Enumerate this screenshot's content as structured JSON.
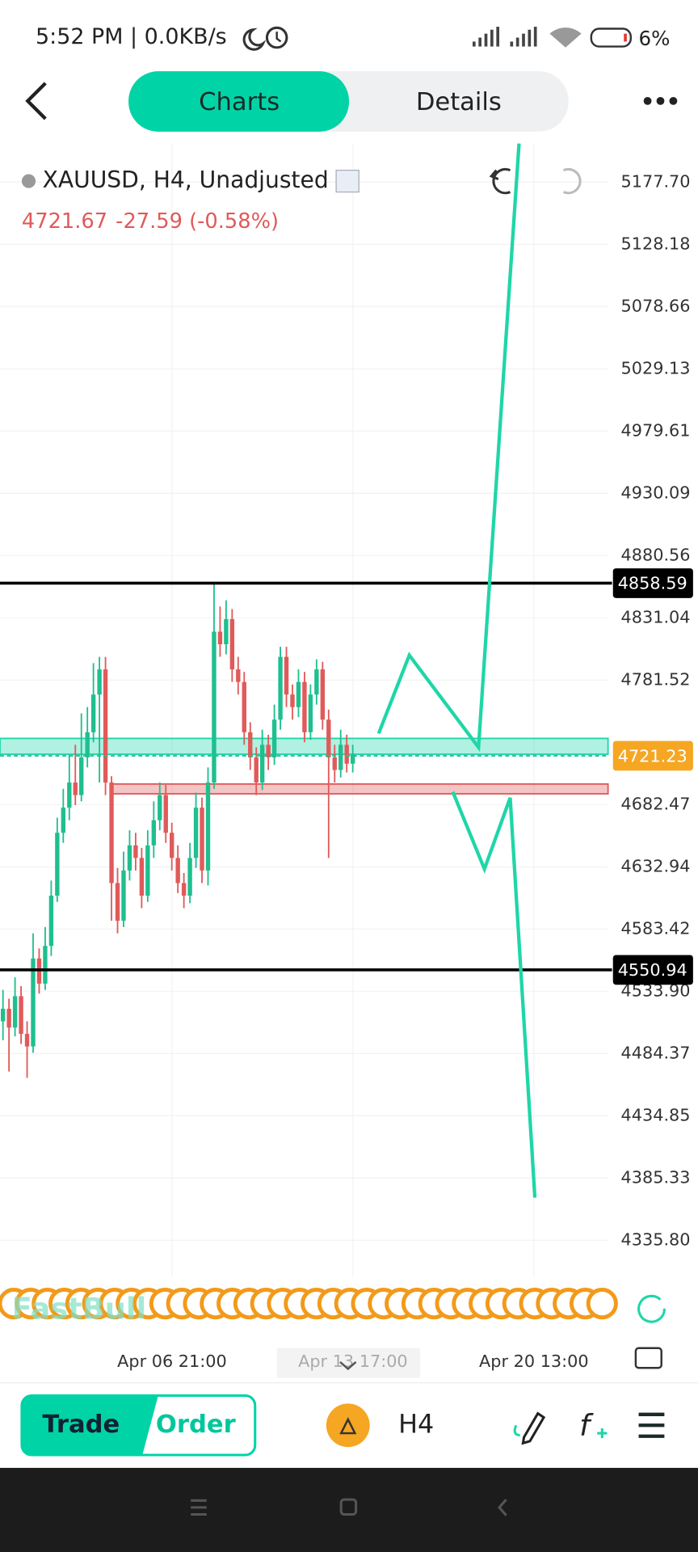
{
  "status_bar": {
    "left": "5:52 PM | 0.0KB/s",
    "battery": "6%"
  },
  "tabs": [
    "Charts",
    "Details"
  ],
  "chart": {
    "symbol": "XAUUSD, H4, Unadjusted",
    "last_price": "4721.67",
    "change": "-27.59 (-0.58%)",
    "ylim": [
      4306.7,
      5208.4
    ],
    "yticks": [
      {
        "value": 5177.7,
        "label": "5177.70"
      },
      5128.18,
      5078.66,
      5029.13,
      4979.61,
      4930.09,
      4880.56,
      4831.04,
      4781.52,
      4682.47,
      4632.94,
      4583.42,
      {
        "value": 4533.9,
        "label": "4533.90"
      },
      4484.37,
      4434.85,
      4385.33,
      {
        "value": 4335.8,
        "label": "4335.80"
      }
    ],
    "levels": [
      4858.59,
      4550.94
    ],
    "current_price": 4721.23,
    "zones": [
      {
        "low": 4722.5,
        "high": 4735.1,
        "color": "#1fd6a8"
      },
      {
        "low": 4691,
        "high": 4698.8,
        "color": "#e05a5a"
      }
    ],
    "xticks": [
      "Apr 06 21:00",
      "Apr 13 17:00",
      "Apr 20 13:00"
    ],
    "up_color": "#1fbf8f",
    "down_color": "#e05a5a",
    "candles": [
      [
        4510,
        4535,
        4495,
        4520
      ],
      [
        4520,
        4528,
        4470,
        4505
      ],
      [
        4505,
        4545,
        4498,
        4530
      ],
      [
        4530,
        4538,
        4492,
        4500
      ],
      [
        4500,
        4510,
        4465,
        4490
      ],
      [
        4490,
        4580,
        4485,
        4560
      ],
      [
        4560,
        4568,
        4532,
        4540
      ],
      [
        4540,
        4585,
        4535,
        4570
      ],
      [
        4570,
        4622,
        4562,
        4610
      ],
      [
        4610,
        4672,
        4605,
        4660
      ],
      [
        4660,
        4695,
        4652,
        4680
      ],
      [
        4680,
        4722,
        4670,
        4700
      ],
      [
        4700,
        4730,
        4682,
        4690
      ],
      [
        4690,
        4755,
        4685,
        4720
      ],
      [
        4720,
        4760,
        4712,
        4740
      ],
      [
        4740,
        4795,
        4732,
        4770
      ],
      [
        4770,
        4800,
        4700,
        4790
      ],
      [
        4790,
        4800,
        4690,
        4700
      ],
      [
        4700,
        4705,
        4590,
        4620
      ],
      [
        4620,
        4632,
        4580,
        4590
      ],
      [
        4590,
        4645,
        4585,
        4630
      ],
      [
        4630,
        4662,
        4622,
        4650
      ],
      [
        4650,
        4660,
        4630,
        4640
      ],
      [
        4640,
        4648,
        4600,
        4610
      ],
      [
        4610,
        4662,
        4605,
        4650
      ],
      [
        4650,
        4685,
        4640,
        4670
      ],
      [
        4670,
        4700,
        4662,
        4690
      ],
      [
        4690,
        4698,
        4652,
        4660
      ],
      [
        4660,
        4668,
        4630,
        4640
      ],
      [
        4640,
        4650,
        4612,
        4620
      ],
      [
        4620,
        4628,
        4600,
        4610
      ],
      [
        4610,
        4652,
        4604,
        4640
      ],
      [
        4640,
        4692,
        4632,
        4680
      ],
      [
        4680,
        4688,
        4620,
        4630
      ],
      [
        4630,
        4712,
        4618,
        4700
      ],
      [
        4700,
        4858,
        4695,
        4820
      ],
      [
        4820,
        4840,
        4800,
        4810
      ],
      [
        4810,
        4845,
        4802,
        4830
      ],
      [
        4830,
        4838,
        4780,
        4790
      ],
      [
        4790,
        4800,
        4770,
        4780
      ],
      [
        4780,
        4788,
        4730,
        4740
      ],
      [
        4740,
        4748,
        4710,
        4720
      ],
      [
        4720,
        4728,
        4690,
        4700
      ],
      [
        4700,
        4742,
        4694,
        4730
      ],
      [
        4730,
        4738,
        4710,
        4720
      ],
      [
        4720,
        4762,
        4714,
        4750
      ],
      [
        4750,
        4808,
        4742,
        4800
      ],
      [
        4800,
        4808,
        4760,
        4770
      ],
      [
        4770,
        4778,
        4750,
        4760
      ],
      [
        4760,
        4790,
        4752,
        4780
      ],
      [
        4780,
        4788,
        4732,
        4740
      ],
      [
        4740,
        4778,
        4734,
        4770
      ],
      [
        4770,
        4798,
        4762,
        4790
      ],
      [
        4790,
        4796,
        4742,
        4750
      ],
      [
        4750,
        4758,
        4640,
        4720
      ],
      [
        4720,
        4730,
        4700,
        4710
      ],
      [
        4710,
        4742,
        4704,
        4730
      ],
      [
        4730,
        4738,
        4708,
        4715
      ],
      [
        4715,
        4730,
        4708,
        4722
      ]
    ]
  },
  "watermark": "FastBull",
  "bottom_bar": {
    "trade": "Trade",
    "order": "Order",
    "timeframe": "H4"
  }
}
